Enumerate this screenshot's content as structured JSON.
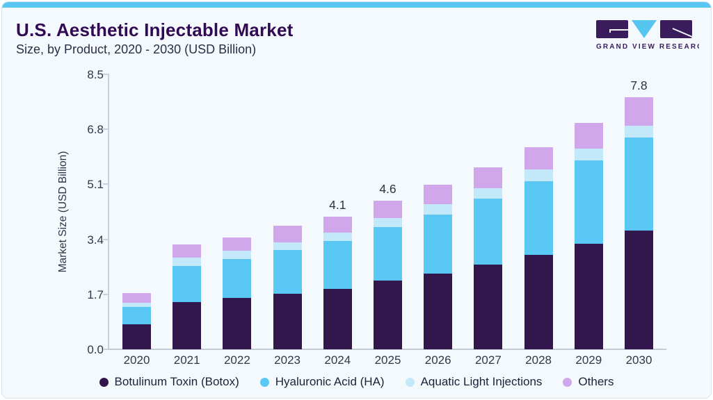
{
  "header": {
    "title": "U.S. Aesthetic Injectable Market",
    "subtitle": "Size, by Product, 2020 - 2030 (USD Billion)"
  },
  "logo": {
    "brand": "GRAND VIEW RESEARCH",
    "purple": "#3a1c5c",
    "blue": "#56c5f0"
  },
  "chart_data": {
    "type": "bar",
    "stacked": true,
    "title": "U.S. Aesthetic Injectable Market Size, by Product, 2020 - 2030 (USD Billion)",
    "ylabel": "Market Size (USD Billion)",
    "xlabel": "",
    "ylim": [
      0,
      8.5
    ],
    "yticks": [
      "8.5",
      "6.8",
      "5.1",
      "3.4",
      "1.7",
      "0.0"
    ],
    "grid": false,
    "legend_position": "bottom",
    "categories": [
      "2020",
      "2021",
      "2022",
      "2023",
      "2024",
      "2025",
      "2026",
      "2027",
      "2028",
      "2029",
      "2030"
    ],
    "series": [
      {
        "name": "Botulinum Toxin (Botox)",
        "color": "#32174d",
        "values": [
          0.78,
          1.45,
          1.58,
          1.72,
          1.87,
          2.12,
          2.34,
          2.62,
          2.91,
          3.27,
          3.66
        ]
      },
      {
        "name": "Hyaluronic Acid (HA)",
        "color": "#5ac8f5",
        "values": [
          0.52,
          1.12,
          1.2,
          1.34,
          1.48,
          1.66,
          1.83,
          2.04,
          2.29,
          2.57,
          2.89
        ]
      },
      {
        "name": "Aquatic Light Injections",
        "color": "#c3e8fa",
        "values": [
          0.14,
          0.26,
          0.27,
          0.24,
          0.25,
          0.27,
          0.32,
          0.32,
          0.35,
          0.36,
          0.37
        ]
      },
      {
        "name": "Others",
        "color": "#cfa7ea",
        "values": [
          0.29,
          0.41,
          0.41,
          0.52,
          0.5,
          0.55,
          0.6,
          0.65,
          0.7,
          0.79,
          0.88
        ]
      }
    ],
    "totals_labeled": {
      "2024": "4.1",
      "2025": "4.6",
      "2030": "7.8"
    }
  }
}
